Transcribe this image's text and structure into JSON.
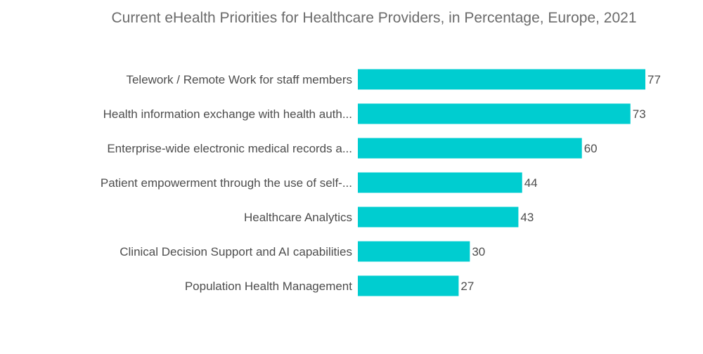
{
  "chart_data": {
    "type": "bar",
    "orientation": "horizontal",
    "title": "Current eHealth Priorities for Healthcare Providers, in Percentage, Europe, 2021",
    "categories": [
      "Telework / Remote Work for staff members",
      "Health information exchange with health auth...",
      "Enterprise-wide electronic medical records a...",
      "Patient empowerment through the use of self-...",
      "Healthcare Analytics",
      "Clinical Decision Support and AI capabilities",
      "Population Health Management"
    ],
    "values": [
      77,
      73,
      60,
      44,
      43,
      30,
      27
    ],
    "xlim": [
      0,
      77
    ],
    "grid": false,
    "legend": "none",
    "bar_color": "#00cdd0"
  }
}
